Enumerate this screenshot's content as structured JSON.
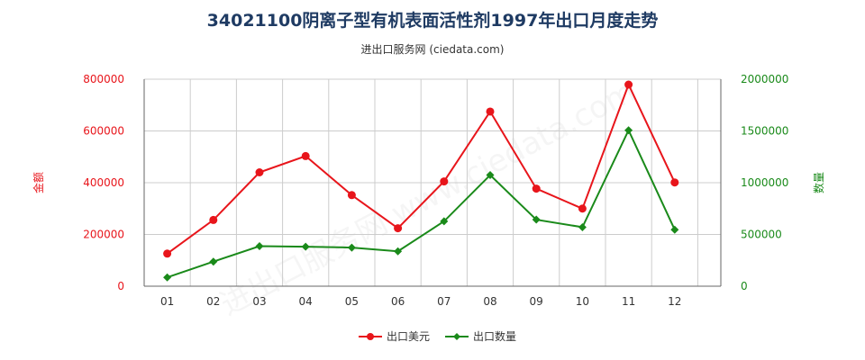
{
  "title": "34021100阴离子型有机表面活性剂1997年出口月度走势",
  "subtitle": "进出口服务网 (ciedata.com)",
  "watermark": "进出口服务网 www.ciedata.com",
  "colors": {
    "series_value": "#e8151b",
    "series_quantity": "#1a8a1a",
    "grid": "#cccccc",
    "axis": "#666666",
    "tick_text": "#333333"
  },
  "chart_data": {
    "type": "line",
    "categories": [
      "01",
      "02",
      "03",
      "04",
      "05",
      "06",
      "07",
      "08",
      "09",
      "10",
      "11",
      "12"
    ],
    "y_left": {
      "label": "金额",
      "ylim": [
        0,
        800000
      ],
      "ticks": [
        0,
        200000,
        400000,
        600000,
        800000
      ],
      "tick_labels": [
        "0",
        "200000",
        "400000",
        "600000",
        "800000"
      ]
    },
    "y_right": {
      "label": "数量",
      "ylim": [
        0,
        2000000
      ],
      "ticks": [
        0,
        500000,
        1000000,
        1500000,
        2000000
      ],
      "tick_labels": [
        "0",
        "500000",
        "1000000",
        "1500000",
        "2000000"
      ]
    },
    "series": [
      {
        "name": "出口美元",
        "axis": "left",
        "color": "#e8151b",
        "values": [
          126000,
          256000,
          440000,
          503000,
          352000,
          224000,
          405000,
          675000,
          377000,
          300000,
          779000,
          401000
        ]
      },
      {
        "name": "出口数量",
        "axis": "right",
        "color": "#1a8a1a",
        "values": [
          85000,
          237000,
          387000,
          382000,
          373000,
          337000,
          627000,
          1074000,
          643000,
          570000,
          1507000,
          546000
        ]
      }
    ],
    "grid": true,
    "legend_position": "bottom-center"
  }
}
